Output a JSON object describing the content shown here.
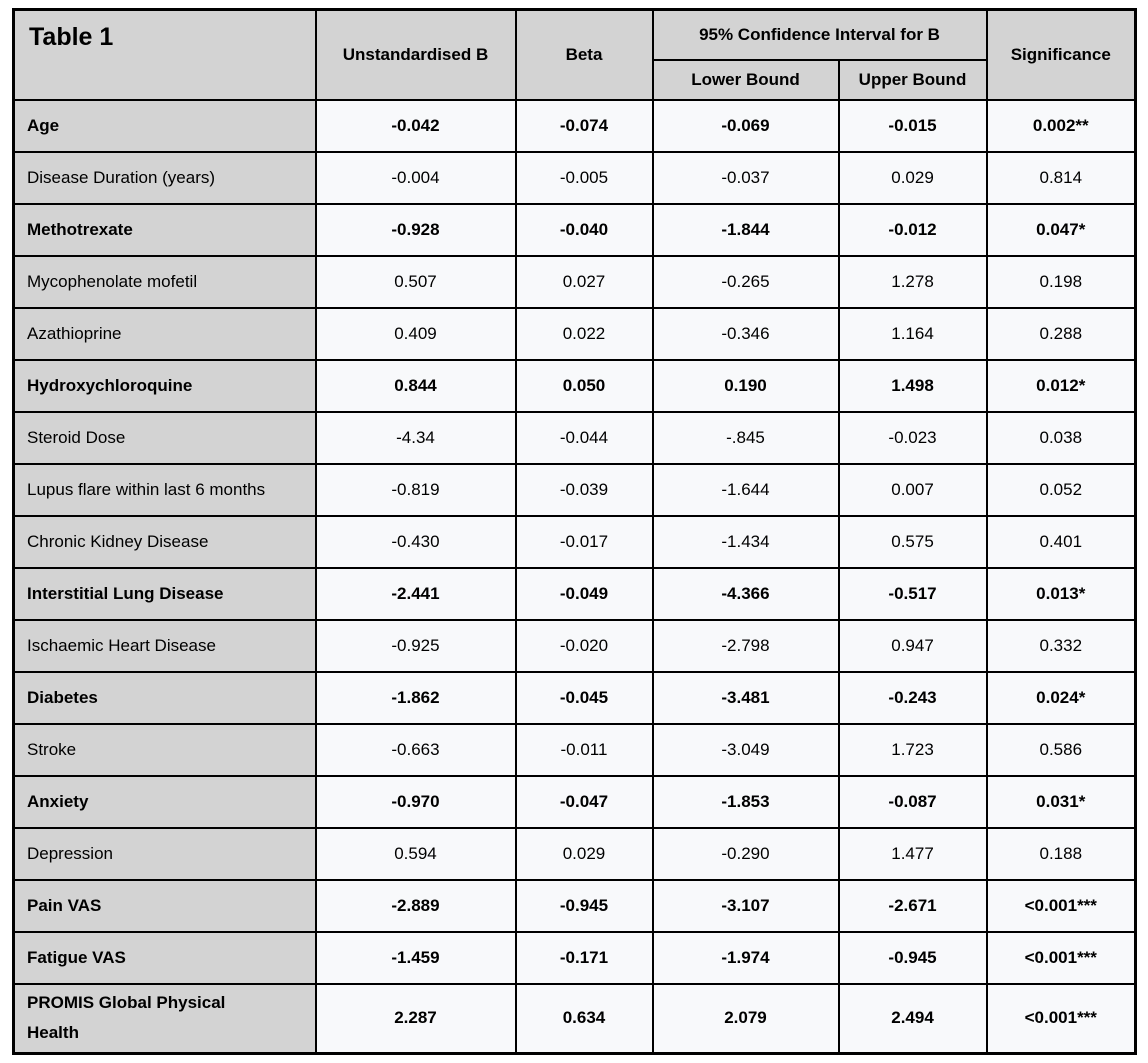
{
  "table": {
    "title": "Table 1",
    "header": {
      "unstandardised_b": "Unstandardised B",
      "beta": "Beta",
      "ci_group": "95% Confidence Interval for B",
      "ci_lower": "Lower Bound",
      "ci_upper": "Upper Bound",
      "significance": "Significance"
    },
    "rows": [
      {
        "label": "Age",
        "b": "-0.042",
        "beta": "-0.074",
        "lower": "-0.069",
        "upper": "-0.015",
        "sig": "0.002**",
        "bold": true
      },
      {
        "label": "Disease Duration (years)",
        "b": "-0.004",
        "beta": "-0.005",
        "lower": "-0.037",
        "upper": "0.029",
        "sig": "0.814",
        "bold": false
      },
      {
        "label": "Methotrexate",
        "b": "-0.928",
        "beta": "-0.040",
        "lower": "-1.844",
        "upper": "-0.012",
        "sig": "0.047*",
        "bold": true
      },
      {
        "label": "Mycophenolate mofetil",
        "b": "0.507",
        "beta": "0.027",
        "lower": "-0.265",
        "upper": "1.278",
        "sig": "0.198",
        "bold": false
      },
      {
        "label": "Azathioprine",
        "b": "0.409",
        "beta": "0.022",
        "lower": "-0.346",
        "upper": "1.164",
        "sig": "0.288",
        "bold": false
      },
      {
        "label": "Hydroxychloroquine",
        "b": "0.844",
        "beta": "0.050",
        "lower": "0.190",
        "upper": "1.498",
        "sig": "0.012*",
        "bold": true
      },
      {
        "label": "Steroid Dose",
        "b": "-4.34",
        "beta": "-0.044",
        "lower": "-.845",
        "upper": "-0.023",
        "sig": "0.038",
        "bold": false
      },
      {
        "label": "Lupus flare within last 6 months",
        "b": "-0.819",
        "beta": "-0.039",
        "lower": "-1.644",
        "upper": "0.007",
        "sig": "0.052",
        "bold": false
      },
      {
        "label": "Chronic Kidney Disease",
        "b": "-0.430",
        "beta": "-0.017",
        "lower": "-1.434",
        "upper": "0.575",
        "sig": "0.401",
        "bold": false
      },
      {
        "label": "Interstitial Lung Disease",
        "b": "-2.441",
        "beta": "-0.049",
        "lower": "-4.366",
        "upper": "-0.517",
        "sig": "0.013*",
        "bold": true
      },
      {
        "label": "Ischaemic Heart Disease",
        "b": "-0.925",
        "beta": "-0.020",
        "lower": "-2.798",
        "upper": "0.947",
        "sig": "0.332",
        "bold": false
      },
      {
        "label": "Diabetes",
        "b": "-1.862",
        "beta": "-0.045",
        "lower": "-3.481",
        "upper": "-0.243",
        "sig": "0.024*",
        "bold": true
      },
      {
        "label": "Stroke",
        "b": "-0.663",
        "beta": "-0.011",
        "lower": "-3.049",
        "upper": "1.723",
        "sig": "0.586",
        "bold": false
      },
      {
        "label": "Anxiety",
        "b": "-0.970",
        "beta": "-0.047",
        "lower": "-1.853",
        "upper": "-0.087",
        "sig": "0.031*",
        "bold": true
      },
      {
        "label": "Depression",
        "b": "0.594",
        "beta": "0.029",
        "lower": "-0.290",
        "upper": "1.477",
        "sig": "0.188",
        "bold": false
      },
      {
        "label": "Pain VAS",
        "b": "-2.889",
        "beta": "-0.945",
        "lower": "-3.107",
        "upper": "-2.671",
        "sig": "<0.001***",
        "bold": true
      },
      {
        "label": "Fatigue VAS",
        "b": "-1.459",
        "beta": "-0.171",
        "lower": "-1.974",
        "upper": "-0.945",
        "sig": "<0.001***",
        "bold": true
      },
      {
        "label": "PROMIS Global Physical Health",
        "b": "2.287",
        "beta": "0.634",
        "lower": "2.079",
        "upper": "2.494",
        "sig": "<0.001***",
        "bold": true
      }
    ]
  },
  "chart_data": {
    "type": "table",
    "title": "Table 1",
    "columns": [
      "",
      "Unstandardised B",
      "Beta",
      "Lower Bound",
      "Upper Bound",
      "Significance"
    ],
    "column_group": {
      "label": "95% Confidence Interval for B",
      "spans": [
        "Lower Bound",
        "Upper Bound"
      ]
    },
    "rows": [
      [
        "Age",
        "-0.042",
        "-0.074",
        "-0.069",
        "-0.015",
        "0.002**"
      ],
      [
        "Disease Duration (years)",
        "-0.004",
        "-0.005",
        "-0.037",
        "0.029",
        "0.814"
      ],
      [
        "Methotrexate",
        "-0.928",
        "-0.040",
        "-1.844",
        "-0.012",
        "0.047*"
      ],
      [
        "Mycophenolate mofetil",
        "0.507",
        "0.027",
        "-0.265",
        "1.278",
        "0.198"
      ],
      [
        "Azathioprine",
        "0.409",
        "0.022",
        "-0.346",
        "1.164",
        "0.288"
      ],
      [
        "Hydroxychloroquine",
        "0.844",
        "0.050",
        "0.190",
        "1.498",
        "0.012*"
      ],
      [
        "Steroid Dose",
        "-4.34",
        "-0.044",
        "-.845",
        "-0.023",
        "0.038"
      ],
      [
        "Lupus flare within last 6 months",
        "-0.819",
        "-0.039",
        "-1.644",
        "0.007",
        "0.052"
      ],
      [
        "Chronic Kidney Disease",
        "-0.430",
        "-0.017",
        "-1.434",
        "0.575",
        "0.401"
      ],
      [
        "Interstitial Lung Disease",
        "-2.441",
        "-0.049",
        "-4.366",
        "-0.517",
        "0.013*"
      ],
      [
        "Ischaemic Heart Disease",
        "-0.925",
        "-0.020",
        "-2.798",
        "0.947",
        "0.332"
      ],
      [
        "Diabetes",
        "-1.862",
        "-0.045",
        "-3.481",
        "-0.243",
        "0.024*"
      ],
      [
        "Stroke",
        "-0.663",
        "-0.011",
        "-3.049",
        "1.723",
        "0.586"
      ],
      [
        "Anxiety",
        "-0.970",
        "-0.047",
        "-1.853",
        "-0.087",
        "0.031*"
      ],
      [
        "Depression",
        "0.594",
        "0.029",
        "-0.290",
        "1.477",
        "0.188"
      ],
      [
        "Pain VAS",
        "-2.889",
        "-0.945",
        "-3.107",
        "-2.671",
        "<0.001***"
      ],
      [
        "Fatigue VAS",
        "-1.459",
        "-0.171",
        "-1.974",
        "-0.945",
        "<0.001***"
      ],
      [
        "PROMIS Global Physical Health",
        "2.287",
        "0.634",
        "2.079",
        "2.494",
        "<0.001***"
      ]
    ]
  },
  "colors": {
    "header_bg": "#d3d3d3",
    "row_label_bg": "#d3d3d3",
    "data_cell_bg": "#f8f9fb",
    "border": "#000000",
    "text": "#000000"
  }
}
